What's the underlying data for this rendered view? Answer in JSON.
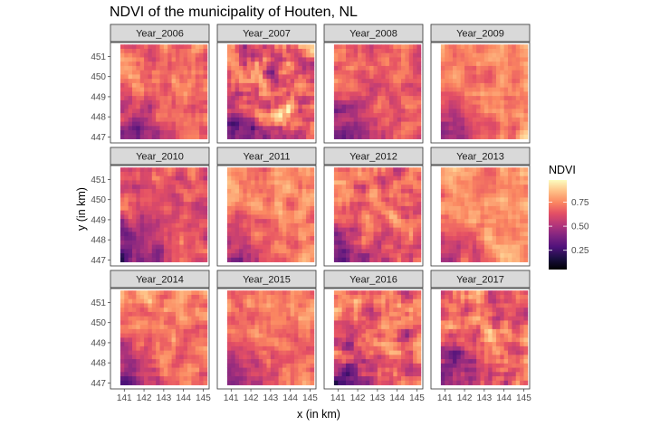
{
  "chart_data": {
    "type": "heatmap",
    "title": "NDVI of the municipality of Houten, NL",
    "xlabel": "x (in km)",
    "ylabel": "y (in km)",
    "x_ticks": [
      141,
      142,
      143,
      144,
      145
    ],
    "y_ticks": [
      447,
      448,
      449,
      450,
      451
    ],
    "xlim": [
      140.3,
      145.3
    ],
    "ylim": [
      446.7,
      451.7
    ],
    "legend": {
      "title": "NDVI",
      "placement": "right",
      "breaks": [
        0.25,
        0.5,
        0.75
      ],
      "break_labels": [
        "0.25",
        "0.50",
        "0.75"
      ],
      "range": [
        0.05,
        0.98
      ],
      "colormap": "magma"
    },
    "panels": [
      {
        "label": "Year_2006"
      },
      {
        "label": "Year_2007"
      },
      {
        "label": "Year_2008"
      },
      {
        "label": "Year_2009"
      },
      {
        "label": "Year_2010"
      },
      {
        "label": "Year_2011"
      },
      {
        "label": "Year_2012"
      },
      {
        "label": "Year_2013"
      },
      {
        "label": "Year_2014"
      },
      {
        "label": "Year_2015"
      },
      {
        "label": "Year_2016"
      },
      {
        "label": "Year_2017"
      }
    ],
    "grid": false
  }
}
